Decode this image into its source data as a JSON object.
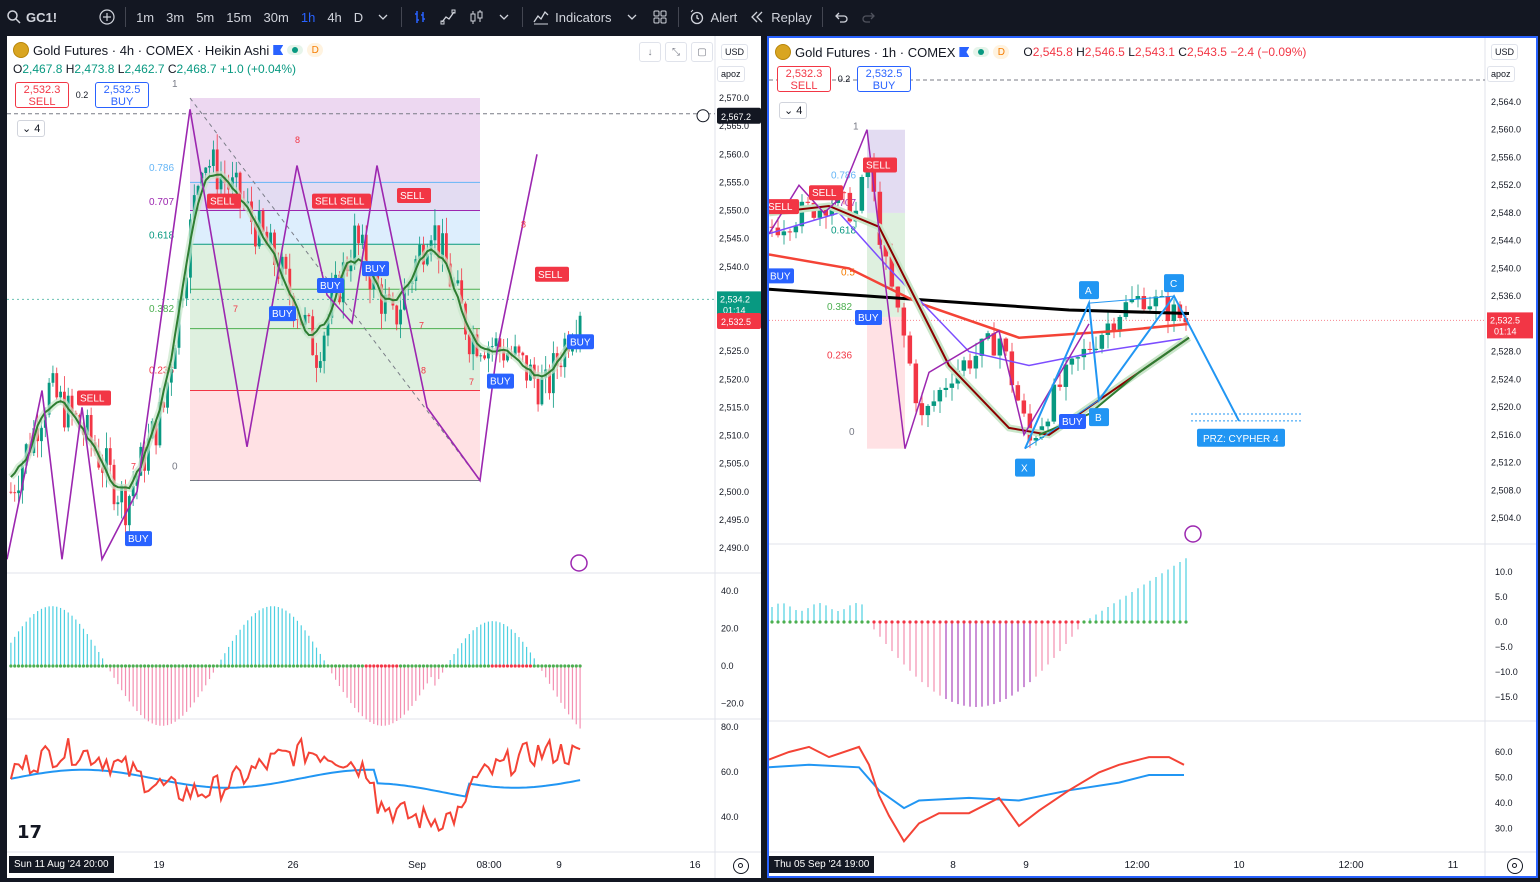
{
  "toolbar": {
    "symbol": "GC1!",
    "timeframes": [
      "1m",
      "3m",
      "5m",
      "15m",
      "30m",
      "1h",
      "4h",
      "D"
    ],
    "active_timeframe": "1h",
    "indicators_label": "Indicators",
    "alert_label": "Alert",
    "replay_label": "Replay"
  },
  "left_chart": {
    "title": "Gold Futures · 4h · COMEX · Heikin Ashi",
    "badge": "D",
    "ohlc": {
      "o_label": "O",
      "o": "2,467.8",
      "h_label": "H",
      "h": "2,473.8",
      "l_label": "L",
      "l": "2,462.7",
      "c_label": "C",
      "c": "2,468.7",
      "change": "+1.0 (+0.04%)"
    },
    "sell_price": "2,532.3",
    "sell_label": "SELL",
    "buy_price": "2,532.5",
    "buy_label": "BUY",
    "spread": "0.2",
    "collapse_count": "4",
    "currency": "USD",
    "scale_mode": "apoz",
    "y_ticks": [
      "2,570.0",
      "2,565.0",
      "2,560.0",
      "2,555.0",
      "2,550.0",
      "2,545.0",
      "2,540.0",
      "2,535.0",
      "2,530.0",
      "2,525.0",
      "2,520.0",
      "2,515.0",
      "2,510.0",
      "2,505.0",
      "2,500.0",
      "2,495.0",
      "2,490.0"
    ],
    "price_tags": {
      "crosshair": "2,567.2",
      "last_green": "2,534.2",
      "countdown": "01:14",
      "last_red": "2,532.5"
    },
    "osc_ticks": [
      "40.0",
      "20.0",
      "0.0",
      "−20.0"
    ],
    "rsi_ticks": [
      "80.0",
      "60.0",
      "40.0"
    ],
    "x_labels": [
      "19",
      "26",
      "Sep",
      "08:00",
      "9",
      "16"
    ],
    "x_date": "Sun 11 Aug '24   20:00",
    "fib_labels": [
      "0.786",
      "0.707",
      "0.618",
      "0.382",
      "0.236",
      "0",
      "1"
    ],
    "signals": [
      "SELL",
      "SELL",
      "SELL",
      "SELL",
      "SELL",
      "SELL",
      "BUY",
      "BUY",
      "BUY",
      "BUY",
      "BUY",
      "BUY"
    ],
    "wave_numbers": [
      "8",
      "7",
      "7",
      "8",
      "7",
      "7",
      "8"
    ]
  },
  "right_chart": {
    "title": "Gold Futures · 1h · COMEX",
    "badge": "D",
    "ohlc": {
      "o_label": "O",
      "o": "2,545.8",
      "h_label": "H",
      "h": "2,546.5",
      "l_label": "L",
      "l": "2,543.1",
      "c_label": "C",
      "c": "2,543.5",
      "change": "−2.4 (−0.09%)"
    },
    "sell_price": "2,532.3",
    "sell_label": "SELL",
    "buy_price": "2,532.5",
    "buy_label": "BUY",
    "spread": "0.2",
    "collapse_count": "4",
    "currency": "USD",
    "scale_mode": "apoz",
    "y_ticks": [
      "2,564.0",
      "2,560.0",
      "2,556.0",
      "2,552.0",
      "2,548.0",
      "2,544.0",
      "2,540.0",
      "2,536.0",
      "2,532.0",
      "2,528.0",
      "2,524.0",
      "2,520.0",
      "2,516.0",
      "2,512.0",
      "2,508.0",
      "2,504.0"
    ],
    "price_tags": {
      "last_red": "2,532.5",
      "countdown": "01:14"
    },
    "osc_ticks": [
      "10.0",
      "5.0",
      "0.0",
      "−5.0",
      "−10.0",
      "−15.0"
    ],
    "rsi_ticks": [
      "60.0",
      "50.0",
      "40.0",
      "30.0"
    ],
    "x_labels": [
      "8",
      "9",
      "12:00",
      "10",
      "12:00",
      "11"
    ],
    "x_date": "Thu 05 Sep '24   19:00",
    "fib_labels": [
      "1",
      "0.786",
      "0.707",
      "0.618",
      "0.5",
      "0.382",
      "0.236",
      "0"
    ],
    "pattern_points": [
      "X",
      "A",
      "B",
      "C"
    ],
    "prz_label": "PRZ: CYPHER 4",
    "signals": [
      "SELL",
      "SELL",
      "SELL",
      "BUY",
      "BUY",
      "BUY"
    ]
  },
  "colors": {
    "up": "#089981",
    "down": "#f23645",
    "accent": "#2962ff",
    "purple": "#9c27b0",
    "fib_purple": "#d1c4e9"
  }
}
